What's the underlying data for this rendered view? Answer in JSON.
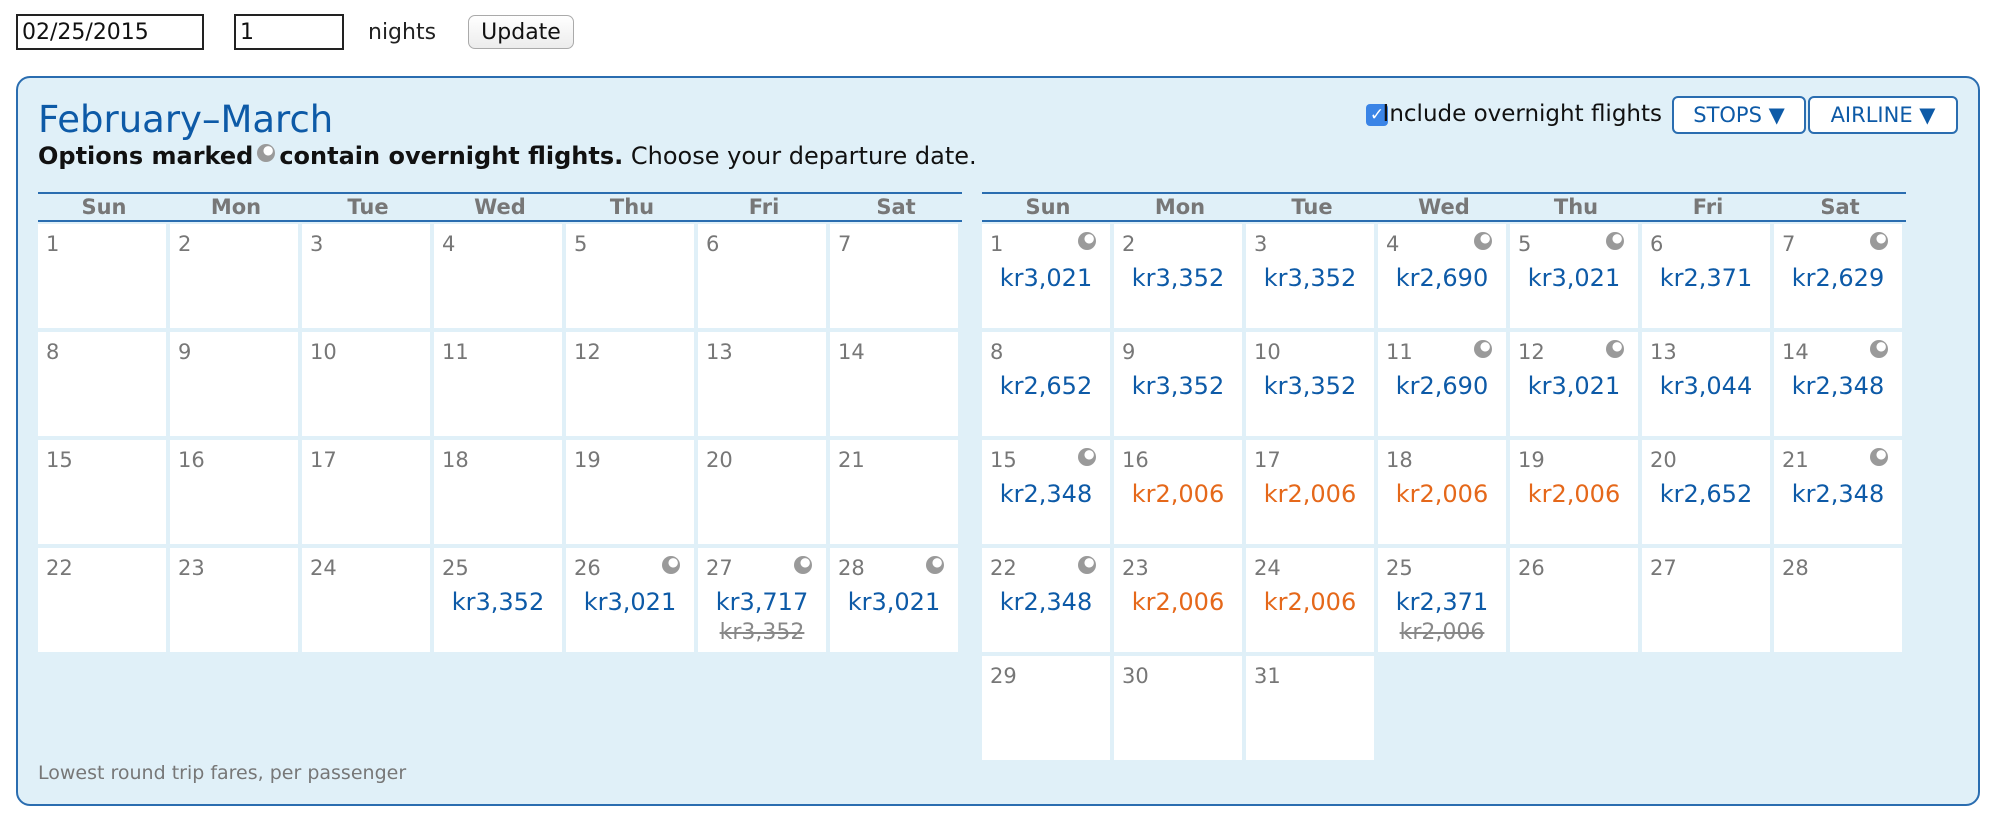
{
  "search": {
    "date_value": "02/25/2015",
    "nights_value": "1",
    "nights_label": "nights",
    "update_label": "Update"
  },
  "panel": {
    "title": "February–March",
    "subtitle_bold_prefix": "Options marked",
    "subtitle_bold_suffix": "contain overnight flights.",
    "subtitle_rest": "Choose your departure date.",
    "overnight_label": "Include overnight flights",
    "overnight_checked": true,
    "stops_label": "STOPS",
    "airline_label": "AIRLINE",
    "footnote": "Lowest round trip fares, per passenger",
    "weekdays": [
      "Sun",
      "Mon",
      "Tue",
      "Wed",
      "Thu",
      "Fri",
      "Sat"
    ]
  },
  "colors": {
    "accent": "#0d5aa7",
    "low_fare": "#e5681a",
    "panel_bg": "#e0f0f8"
  },
  "months": [
    {
      "name": "February",
      "weeks": [
        [
          {
            "day": "1"
          },
          {
            "day": "2"
          },
          {
            "day": "3"
          },
          {
            "day": "4"
          },
          {
            "day": "5"
          },
          {
            "day": "6"
          },
          {
            "day": "7"
          }
        ],
        [
          {
            "day": "8"
          },
          {
            "day": "9"
          },
          {
            "day": "10"
          },
          {
            "day": "11"
          },
          {
            "day": "12"
          },
          {
            "day": "13"
          },
          {
            "day": "14"
          }
        ],
        [
          {
            "day": "15"
          },
          {
            "day": "16"
          },
          {
            "day": "17"
          },
          {
            "day": "18"
          },
          {
            "day": "19"
          },
          {
            "day": "20"
          },
          {
            "day": "21"
          }
        ],
        [
          {
            "day": "22"
          },
          {
            "day": "23"
          },
          {
            "day": "24"
          },
          {
            "day": "25",
            "fare": "kr3,352"
          },
          {
            "day": "26",
            "fare": "kr3,021",
            "overnight": true
          },
          {
            "day": "27",
            "fare": "kr3,717",
            "old_fare": "kr3,352",
            "overnight": true
          },
          {
            "day": "28",
            "fare": "kr3,021",
            "overnight": true
          }
        ]
      ]
    },
    {
      "name": "March",
      "weeks": [
        [
          {
            "day": "1",
            "fare": "kr3,021",
            "overnight": true
          },
          {
            "day": "2",
            "fare": "kr3,352"
          },
          {
            "day": "3",
            "fare": "kr3,352"
          },
          {
            "day": "4",
            "fare": "kr2,690",
            "overnight": true
          },
          {
            "day": "5",
            "fare": "kr3,021",
            "overnight": true
          },
          {
            "day": "6",
            "fare": "kr2,371"
          },
          {
            "day": "7",
            "fare": "kr2,629",
            "overnight": true
          }
        ],
        [
          {
            "day": "8",
            "fare": "kr2,652"
          },
          {
            "day": "9",
            "fare": "kr3,352"
          },
          {
            "day": "10",
            "fare": "kr3,352"
          },
          {
            "day": "11",
            "fare": "kr2,690",
            "overnight": true
          },
          {
            "day": "12",
            "fare": "kr3,021",
            "overnight": true
          },
          {
            "day": "13",
            "fare": "kr3,044"
          },
          {
            "day": "14",
            "fare": "kr2,348",
            "overnight": true
          }
        ],
        [
          {
            "day": "15",
            "fare": "kr2,348",
            "overnight": true
          },
          {
            "day": "16",
            "fare": "kr2,006",
            "low": true
          },
          {
            "day": "17",
            "fare": "kr2,006",
            "low": true
          },
          {
            "day": "18",
            "fare": "kr2,006",
            "low": true
          },
          {
            "day": "19",
            "fare": "kr2,006",
            "low": true
          },
          {
            "day": "20",
            "fare": "kr2,652"
          },
          {
            "day": "21",
            "fare": "kr2,348",
            "overnight": true
          }
        ],
        [
          {
            "day": "22",
            "fare": "kr2,348",
            "overnight": true
          },
          {
            "day": "23",
            "fare": "kr2,006",
            "low": true
          },
          {
            "day": "24",
            "fare": "kr2,006",
            "low": true
          },
          {
            "day": "25",
            "fare": "kr2,371",
            "old_fare": "kr2,006"
          },
          {
            "day": "26"
          },
          {
            "day": "27"
          },
          {
            "day": "28"
          }
        ],
        [
          {
            "day": "29"
          },
          {
            "day": "30"
          },
          {
            "day": "31"
          },
          null,
          null,
          null,
          null
        ]
      ]
    }
  ]
}
